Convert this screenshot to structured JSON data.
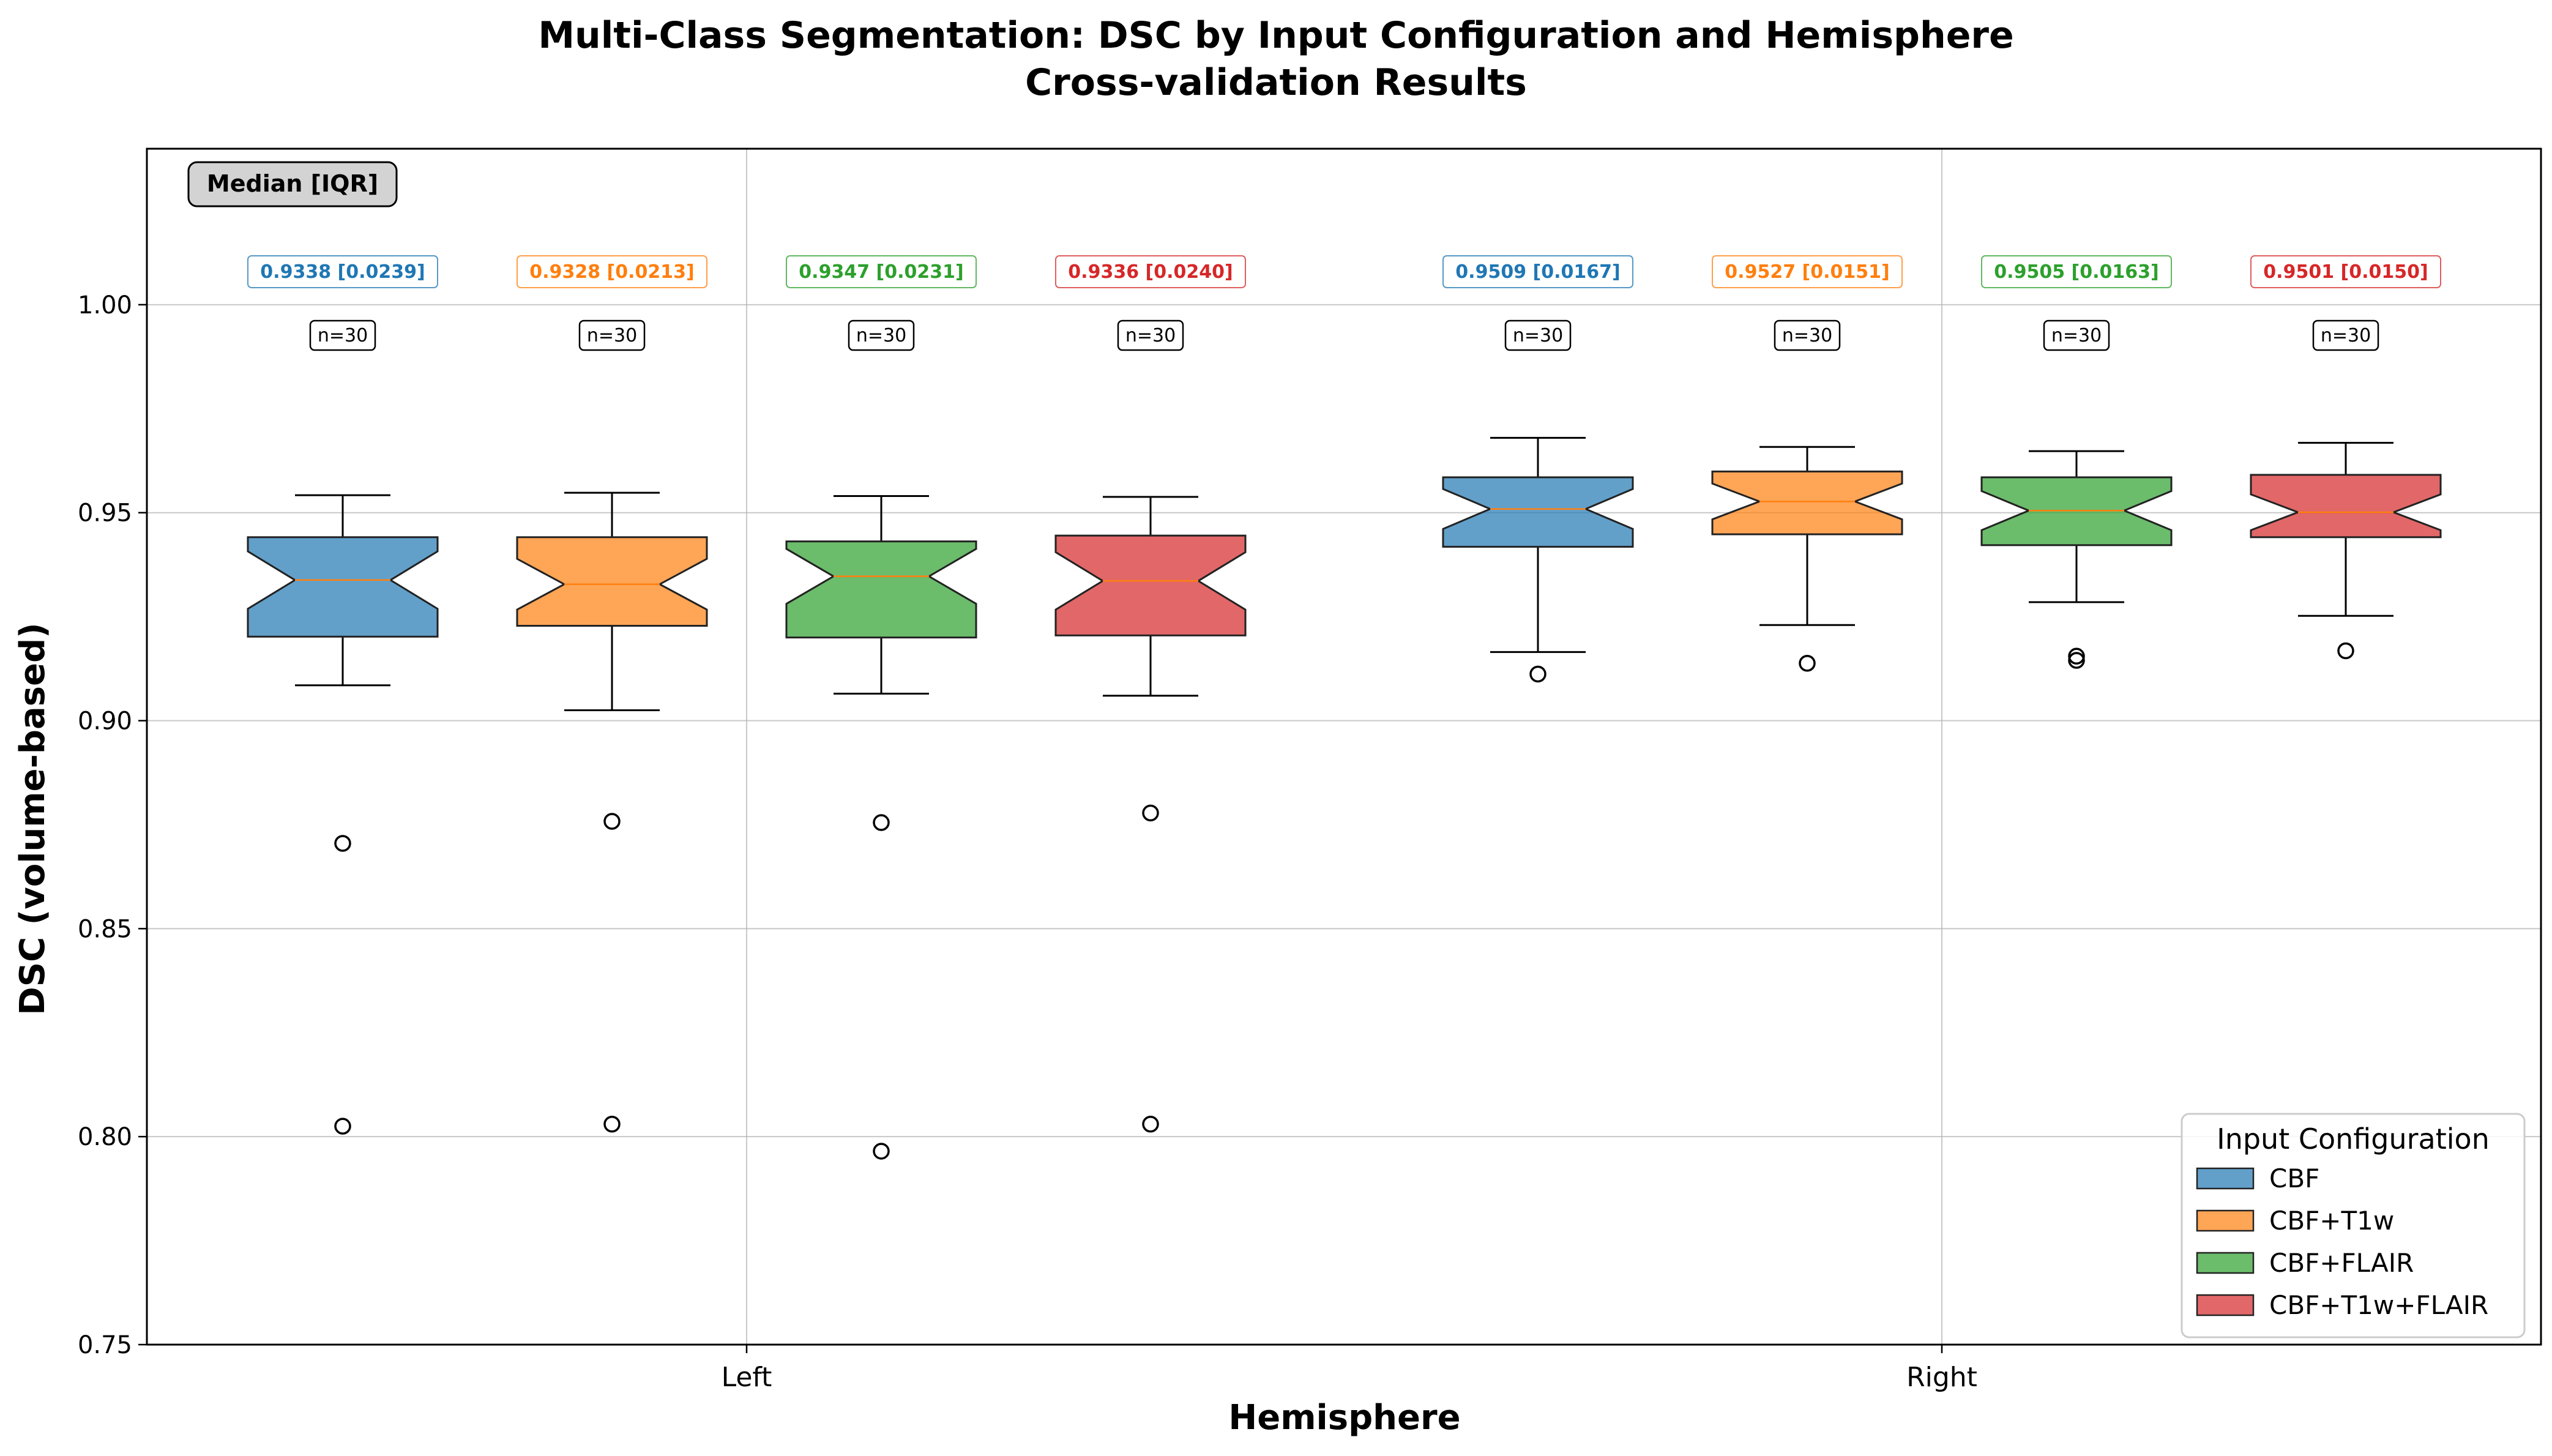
{
  "chart_data": {
    "type": "box",
    "title": "Multi-Class Segmentation: DSC by Input Configuration and Hemisphere",
    "subtitle": "Cross-validation Results",
    "xlabel": "Hemisphere",
    "ylabel": "DSC (volume-based)",
    "ylim": [
      0.75,
      1.0375
    ],
    "yticks": [
      0.75,
      0.8,
      0.85,
      0.9,
      0.95,
      1.0
    ],
    "ytick_labels": [
      "0.75",
      "0.80",
      "0.85",
      "0.90",
      "0.95",
      "1.00"
    ],
    "categories": [
      "Left",
      "Right"
    ],
    "grid": true,
    "stats_header": "Median [IQR]",
    "legend": {
      "title": "Input Configuration",
      "placement": "lower-right"
    },
    "series": [
      {
        "name": "CBF",
        "color": "#1f77b4",
        "boxes": [
          {
            "category": "Left",
            "q1": 0.9202,
            "median": 0.9338,
            "q3": 0.9441,
            "whisker_low": 0.9085,
            "whisker_high": 0.9542,
            "notch_low": 0.9269,
            "notch_high": 0.9407,
            "outliers": [
              0.8705,
              0.8025
            ],
            "stat_label": "0.9338 [0.0239]",
            "n_label": "n=30"
          },
          {
            "category": "Right",
            "q1": 0.9418,
            "median": 0.9509,
            "q3": 0.9585,
            "whisker_low": 0.9165,
            "whisker_high": 0.968,
            "notch_low": 0.9461,
            "notch_high": 0.9557,
            "outliers": [
              0.9112
            ],
            "stat_label": "0.9509 [0.0167]",
            "n_label": "n=30"
          }
        ]
      },
      {
        "name": "CBF+T1w",
        "color": "#ff7f0e",
        "boxes": [
          {
            "category": "Left",
            "q1": 0.9228,
            "median": 0.9328,
            "q3": 0.9441,
            "whisker_low": 0.9025,
            "whisker_high": 0.9548,
            "notch_low": 0.9267,
            "notch_high": 0.9389,
            "outliers": [
              0.8758,
              0.803
            ],
            "stat_label": "0.9328 [0.0213]",
            "n_label": "n=30"
          },
          {
            "category": "Right",
            "q1": 0.9448,
            "median": 0.9527,
            "q3": 0.9599,
            "whisker_low": 0.923,
            "whisker_high": 0.9658,
            "notch_low": 0.9484,
            "notch_high": 0.957,
            "outliers": [
              0.9138
            ],
            "stat_label": "0.9527 [0.0151]",
            "n_label": "n=30"
          }
        ]
      },
      {
        "name": "CBF+FLAIR",
        "color": "#2ca02c",
        "boxes": [
          {
            "category": "Left",
            "q1": 0.92,
            "median": 0.9347,
            "q3": 0.9431,
            "whisker_low": 0.9065,
            "whisker_high": 0.954,
            "notch_low": 0.9281,
            "notch_high": 0.9413,
            "outliers": [
              0.8755,
              0.7965
            ],
            "stat_label": "0.9347 [0.0231]",
            "n_label": "n=30"
          },
          {
            "category": "Right",
            "q1": 0.9422,
            "median": 0.9505,
            "q3": 0.9585,
            "whisker_low": 0.9285,
            "whisker_high": 0.9648,
            "notch_low": 0.9458,
            "notch_high": 0.9552,
            "outliers": [
              0.9155,
              0.9145
            ],
            "stat_label": "0.9505 [0.0163]",
            "n_label": "n=30"
          }
        ]
      },
      {
        "name": "CBF+T1w+FLAIR",
        "color": "#d62728",
        "boxes": [
          {
            "category": "Left",
            "q1": 0.9205,
            "median": 0.9336,
            "q3": 0.9445,
            "whisker_low": 0.906,
            "whisker_high": 0.9538,
            "notch_low": 0.9267,
            "notch_high": 0.9405,
            "outliers": [
              0.8778,
              0.803
            ],
            "stat_label": "0.9336 [0.0240]",
            "n_label": "n=30"
          },
          {
            "category": "Right",
            "q1": 0.9441,
            "median": 0.9501,
            "q3": 0.9591,
            "whisker_low": 0.9252,
            "whisker_high": 0.9668,
            "notch_low": 0.9458,
            "notch_high": 0.9544,
            "outliers": [
              0.9168
            ],
            "stat_label": "0.9501 [0.0150]",
            "n_label": "n=30"
          }
        ]
      }
    ]
  }
}
